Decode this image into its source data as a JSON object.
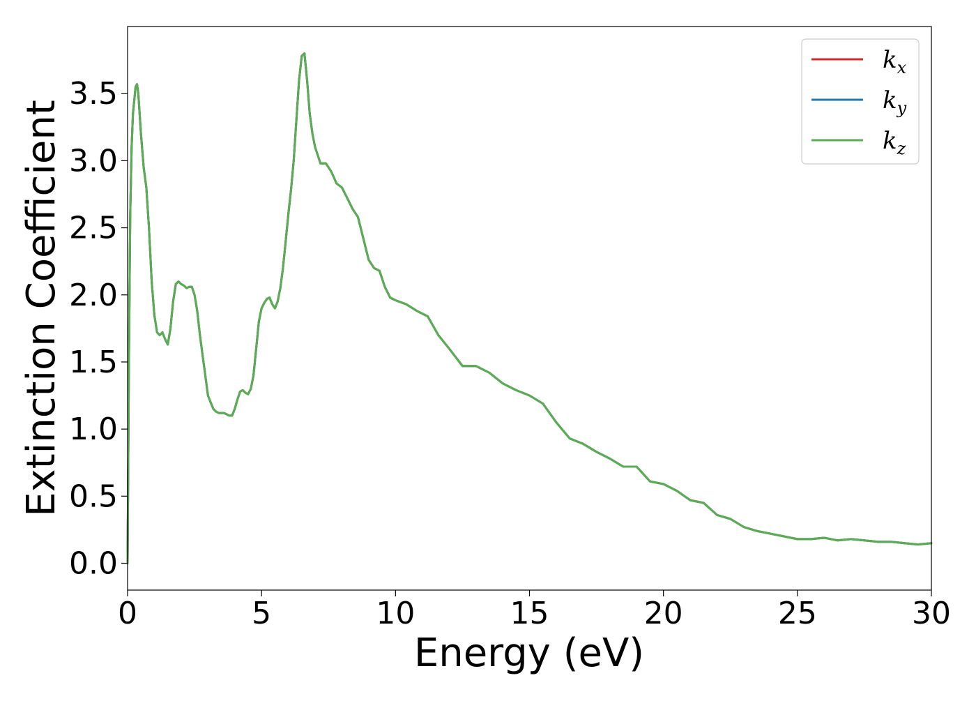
{
  "chart_data": {
    "type": "line",
    "title": "",
    "xlabel": "Energy (eV)",
    "ylabel": "Extinction Coefficient",
    "xlim": [
      0,
      30
    ],
    "ylim": [
      -0.2,
      4.0
    ],
    "xticks": [
      0,
      5,
      10,
      15,
      20,
      25,
      30
    ],
    "yticks": [
      0.0,
      0.5,
      1.0,
      1.5,
      2.0,
      2.5,
      3.0,
      3.5
    ],
    "xtick_labels": [
      "0",
      "5",
      "10",
      "15",
      "20",
      "25",
      "30"
    ],
    "ytick_labels": [
      "0.0",
      "0.5",
      "1.0",
      "1.5",
      "2.0",
      "2.5",
      "3.0",
      "3.5"
    ],
    "grid": false,
    "legend_position": "top-right",
    "x": [
      0.0,
      0.05,
      0.1,
      0.15,
      0.2,
      0.3,
      0.35,
      0.4,
      0.5,
      0.6,
      0.7,
      0.8,
      0.9,
      1.0,
      1.1,
      1.2,
      1.3,
      1.4,
      1.5,
      1.6,
      1.7,
      1.8,
      1.9,
      2.0,
      2.1,
      2.2,
      2.3,
      2.4,
      2.5,
      2.6,
      2.7,
      2.8,
      2.9,
      3.0,
      3.1,
      3.2,
      3.3,
      3.4,
      3.5,
      3.6,
      3.7,
      3.8,
      3.9,
      4.0,
      4.1,
      4.2,
      4.3,
      4.4,
      4.5,
      4.6,
      4.7,
      4.8,
      4.9,
      5.0,
      5.1,
      5.2,
      5.3,
      5.4,
      5.5,
      5.6,
      5.7,
      5.8,
      5.9,
      6.0,
      6.1,
      6.2,
      6.3,
      6.4,
      6.5,
      6.6,
      6.7,
      6.8,
      6.9,
      7.0,
      7.2,
      7.4,
      7.6,
      7.8,
      8.0,
      8.2,
      8.4,
      8.6,
      8.8,
      9.0,
      9.2,
      9.4,
      9.6,
      9.8,
      10.0,
      10.4,
      10.8,
      11.2,
      11.6,
      12.0,
      12.5,
      13.0,
      13.5,
      14.0,
      14.5,
      15.0,
      15.5,
      16.0,
      16.5,
      17.0,
      17.5,
      18.0,
      18.5,
      19.0,
      19.5,
      20.0,
      20.5,
      21.0,
      21.5,
      22.0,
      22.5,
      23.0,
      23.5,
      24.0,
      24.5,
      25.0,
      25.5,
      26.0,
      26.5,
      27.0,
      27.5,
      28.0,
      28.5,
      29.0,
      29.5,
      30.0
    ],
    "y": [
      0.0,
      1.5,
      2.6,
      3.1,
      3.35,
      3.55,
      3.57,
      3.5,
      3.2,
      2.95,
      2.8,
      2.5,
      2.1,
      1.85,
      1.72,
      1.7,
      1.72,
      1.67,
      1.63,
      1.75,
      1.95,
      2.08,
      2.1,
      2.08,
      2.07,
      2.05,
      2.06,
      2.06,
      2.0,
      1.88,
      1.7,
      1.55,
      1.4,
      1.25,
      1.2,
      1.15,
      1.13,
      1.12,
      1.12,
      1.12,
      1.11,
      1.1,
      1.1,
      1.15,
      1.22,
      1.28,
      1.29,
      1.27,
      1.26,
      1.3,
      1.4,
      1.6,
      1.8,
      1.9,
      1.94,
      1.97,
      1.98,
      1.93,
      1.9,
      1.95,
      2.05,
      2.2,
      2.4,
      2.6,
      2.78,
      3.0,
      3.3,
      3.6,
      3.78,
      3.8,
      3.6,
      3.35,
      3.2,
      3.1,
      2.98,
      2.98,
      2.92,
      2.83,
      2.8,
      2.72,
      2.64,
      2.58,
      2.42,
      2.26,
      2.2,
      2.18,
      2.06,
      1.98,
      1.96,
      1.93,
      1.88,
      1.84,
      1.7,
      1.6,
      1.47,
      1.47,
      1.42,
      1.34,
      1.29,
      1.25,
      1.19,
      1.05,
      0.93,
      0.89,
      0.83,
      0.78,
      0.72,
      0.72,
      0.61,
      0.59,
      0.54,
      0.47,
      0.45,
      0.36,
      0.33,
      0.27,
      0.24,
      0.22,
      0.2,
      0.18,
      0.18,
      0.19,
      0.17,
      0.18,
      0.17,
      0.16,
      0.16,
      0.15,
      0.14,
      0.15
    ],
    "series": [
      {
        "name": "k_x",
        "label_main": "k",
        "label_sub": "x",
        "color": "#d62728"
      },
      {
        "name": "k_y",
        "label_main": "k",
        "label_sub": "y",
        "color": "#1f77b4"
      },
      {
        "name": "k_z",
        "label_main": "k",
        "label_sub": "z",
        "color": "#5aad52"
      }
    ]
  }
}
